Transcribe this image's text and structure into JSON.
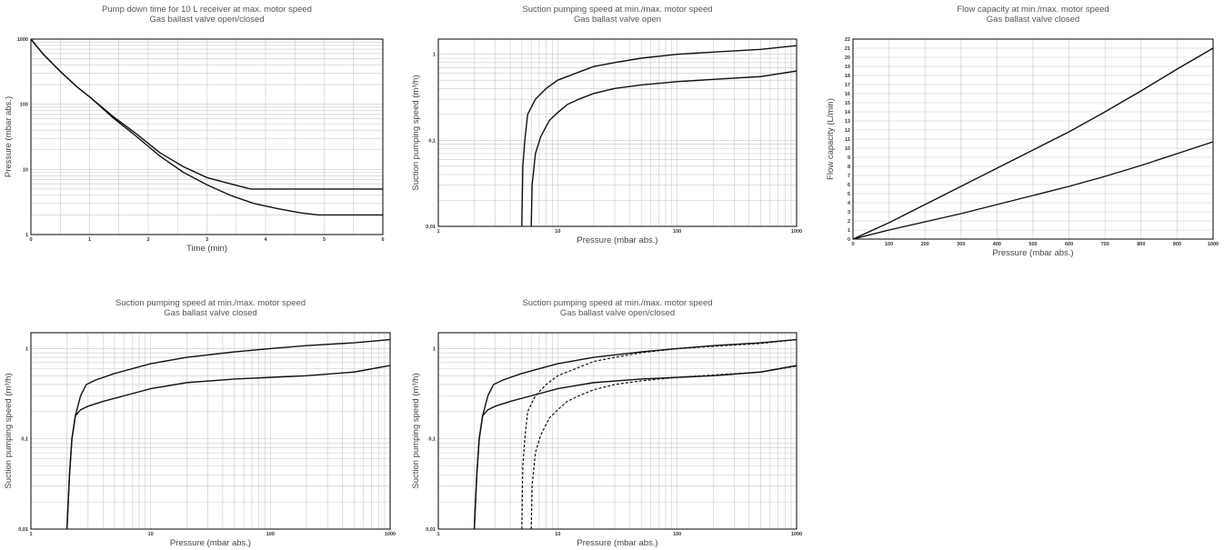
{
  "chart_data": [
    {
      "id": "pumpdown",
      "type": "line",
      "title": [
        "Pump down time for 10 L receiver at max. motor speed",
        "Gas ballast valve open/closed"
      ],
      "xlabel": "Time (min)",
      "ylabel": "Pressure (mbar abs.)",
      "x_scale": "linear",
      "y_scale": "log",
      "xlim": [
        0,
        6
      ],
      "ylim": [
        1,
        1000
      ],
      "x_ticks": [
        "0",
        "1",
        "2",
        "3",
        "4",
        "5",
        "6"
      ],
      "y_ticks": [
        "1",
        "10",
        "100",
        "1000"
      ],
      "series": [
        {
          "dashed": false,
          "points": [
            [
              0,
              1000
            ],
            [
              0.2,
              600
            ],
            [
              0.5,
              320
            ],
            [
              0.8,
              180
            ],
            [
              1.0,
              130
            ],
            [
              1.4,
              65
            ],
            [
              1.8,
              35
            ],
            [
              2.2,
              18
            ],
            [
              2.6,
              11
            ],
            [
              3.0,
              7.5
            ],
            [
              3.4,
              6
            ],
            [
              3.75,
              5
            ],
            [
              4.5,
              5
            ],
            [
              6,
              5
            ]
          ]
        },
        {
          "dashed": false,
          "points": [
            [
              0,
              1000
            ],
            [
              0.2,
              600
            ],
            [
              0.5,
              320
            ],
            [
              0.8,
              180
            ],
            [
              1.0,
              130
            ],
            [
              1.4,
              62
            ],
            [
              1.8,
              32
            ],
            [
              2.2,
              16
            ],
            [
              2.6,
              9
            ],
            [
              3.0,
              5.8
            ],
            [
              3.4,
              4
            ],
            [
              3.8,
              3
            ],
            [
              4.2,
              2.5
            ],
            [
              4.6,
              2.15
            ],
            [
              4.9,
              2
            ],
            [
              6,
              2
            ]
          ]
        }
      ]
    },
    {
      "id": "speed_open",
      "type": "line",
      "title": [
        "Suction pumping speed at min./max. motor speed",
        "Gas ballast valve open"
      ],
      "xlabel": "Pressure (mbar abs.)",
      "ylabel": "Suction pumping speed (m³/h)",
      "x_scale": "log",
      "y_scale": "log",
      "xlim": [
        1,
        1000
      ],
      "ylim": [
        0.01,
        1.5
      ],
      "x_ticks": [
        "1",
        "10",
        "100",
        "1000"
      ],
      "y_ticks": [
        "0,01",
        "0,1",
        "1"
      ],
      "series": [
        {
          "dashed": false,
          "points": [
            [
              5,
              0.01
            ],
            [
              5.1,
              0.05
            ],
            [
              5.3,
              0.1
            ],
            [
              5.6,
              0.2
            ],
            [
              6.5,
              0.3
            ],
            [
              8,
              0.4
            ],
            [
              10,
              0.5
            ],
            [
              15,
              0.62
            ],
            [
              20,
              0.72
            ],
            [
              30,
              0.8
            ],
            [
              50,
              0.9
            ],
            [
              100,
              1.0
            ],
            [
              200,
              1.06
            ],
            [
              500,
              1.14
            ],
            [
              1000,
              1.26
            ]
          ]
        },
        {
          "dashed": false,
          "points": [
            [
              6,
              0.01
            ],
            [
              6.1,
              0.03
            ],
            [
              6.5,
              0.07
            ],
            [
              7.2,
              0.11
            ],
            [
              8.5,
              0.17
            ],
            [
              10,
              0.21
            ],
            [
              12,
              0.26
            ],
            [
              15,
              0.3
            ],
            [
              20,
              0.35
            ],
            [
              30,
              0.4
            ],
            [
              50,
              0.44
            ],
            [
              100,
              0.48
            ],
            [
              200,
              0.51
            ],
            [
              500,
              0.55
            ],
            [
              1000,
              0.64
            ]
          ]
        }
      ]
    },
    {
      "id": "flow",
      "type": "line",
      "title": [
        "Flow capacity at min./max. motor speed",
        "Gas ballast valve closed"
      ],
      "xlabel": "Pressure (mbar abs.)",
      "ylabel": "Flow capacity (L/min)",
      "x_scale": "linear",
      "y_scale": "linear",
      "xlim": [
        0,
        1000
      ],
      "ylim": [
        0,
        22
      ],
      "x_ticks": [
        "0",
        "100",
        "200",
        "300",
        "400",
        "500",
        "600",
        "700",
        "800",
        "900",
        "1000"
      ],
      "y_ticks": [
        "0",
        "1",
        "2",
        "3",
        "4",
        "5",
        "6",
        "7",
        "8",
        "9",
        "10",
        "11",
        "12",
        "13",
        "14",
        "15",
        "16",
        "17",
        "18",
        "19",
        "20",
        "21",
        "22"
      ],
      "series": [
        {
          "dashed": false,
          "points": [
            [
              0,
              0
            ],
            [
              100,
              1.8
            ],
            [
              200,
              3.8
            ],
            [
              300,
              5.8
            ],
            [
              400,
              7.8
            ],
            [
              500,
              9.8
            ],
            [
              600,
              11.8
            ],
            [
              700,
              14
            ],
            [
              800,
              16.3
            ],
            [
              900,
              18.7
            ],
            [
              1000,
              21
            ]
          ]
        },
        {
          "dashed": false,
          "points": [
            [
              0,
              0
            ],
            [
              100,
              1
            ],
            [
              200,
              1.9
            ],
            [
              300,
              2.8
            ],
            [
              400,
              3.8
            ],
            [
              500,
              4.8
            ],
            [
              600,
              5.8
            ],
            [
              700,
              6.9
            ],
            [
              800,
              8.1
            ],
            [
              900,
              9.4
            ],
            [
              1000,
              10.7
            ]
          ]
        }
      ]
    },
    {
      "id": "speed_closed",
      "type": "line",
      "title": [
        "Suction pumping speed at min./max. motor speed",
        "Gas ballast valve closed"
      ],
      "xlabel": "Pressure (mbar abs.)",
      "ylabel": "Suction pumping speed (m³/h)",
      "x_scale": "log",
      "y_scale": "log",
      "xlim": [
        1,
        1000
      ],
      "ylim": [
        0.01,
        1.5
      ],
      "x_ticks": [
        "1",
        "10",
        "100",
        "1000"
      ],
      "y_ticks": [
        "0,01",
        "0,1",
        "1"
      ],
      "series": [
        {
          "dashed": false,
          "points": [
            [
              2,
              0.01
            ],
            [
              2.1,
              0.04
            ],
            [
              2.2,
              0.1
            ],
            [
              2.35,
              0.18
            ],
            [
              2.6,
              0.3
            ],
            [
              2.9,
              0.4
            ],
            [
              3.5,
              0.45
            ],
            [
              5,
              0.53
            ],
            [
              10,
              0.68
            ],
            [
              20,
              0.8
            ],
            [
              50,
              0.92
            ],
            [
              100,
              1.0
            ],
            [
              200,
              1.08
            ],
            [
              500,
              1.16
            ],
            [
              1000,
              1.26
            ]
          ]
        },
        {
          "dashed": false,
          "points": [
            [
              2,
              0.01
            ],
            [
              2.1,
              0.04
            ],
            [
              2.2,
              0.1
            ],
            [
              2.35,
              0.18
            ],
            [
              2.6,
              0.21
            ],
            [
              3,
              0.23
            ],
            [
              4,
              0.26
            ],
            [
              6,
              0.3
            ],
            [
              10,
              0.36
            ],
            [
              20,
              0.42
            ],
            [
              50,
              0.46
            ],
            [
              100,
              0.48
            ],
            [
              200,
              0.5
            ],
            [
              500,
              0.55
            ],
            [
              1000,
              0.65
            ]
          ]
        }
      ]
    },
    {
      "id": "speed_both",
      "type": "line",
      "title": [
        "Suction pumping speed at min./max. motor speed",
        "Gas ballast valve open/closed"
      ],
      "xlabel": "Pressure (mbar abs.)",
      "ylabel": "Suction pumping speed (m³/h)",
      "x_scale": "log",
      "y_scale": "log",
      "xlim": [
        1,
        1000
      ],
      "ylim": [
        0.01,
        1.5
      ],
      "x_ticks": [
        "1",
        "10",
        "100",
        "1000"
      ],
      "y_ticks": [
        "0,01",
        "0,1",
        "1"
      ],
      "series": [
        {
          "dashed": false,
          "points": [
            [
              2,
              0.01
            ],
            [
              2.1,
              0.04
            ],
            [
              2.2,
              0.1
            ],
            [
              2.35,
              0.18
            ],
            [
              2.6,
              0.3
            ],
            [
              2.9,
              0.4
            ],
            [
              3.5,
              0.45
            ],
            [
              5,
              0.53
            ],
            [
              10,
              0.68
            ],
            [
              20,
              0.8
            ],
            [
              50,
              0.92
            ],
            [
              100,
              1.0
            ],
            [
              200,
              1.08
            ],
            [
              500,
              1.16
            ],
            [
              1000,
              1.26
            ]
          ]
        },
        {
          "dashed": false,
          "points": [
            [
              2,
              0.01
            ],
            [
              2.1,
              0.04
            ],
            [
              2.2,
              0.1
            ],
            [
              2.35,
              0.18
            ],
            [
              2.6,
              0.21
            ],
            [
              3,
              0.23
            ],
            [
              4,
              0.26
            ],
            [
              6,
              0.3
            ],
            [
              10,
              0.36
            ],
            [
              20,
              0.42
            ],
            [
              50,
              0.46
            ],
            [
              100,
              0.48
            ],
            [
              200,
              0.5
            ],
            [
              500,
              0.55
            ],
            [
              1000,
              0.65
            ]
          ]
        },
        {
          "dashed": true,
          "points": [
            [
              5,
              0.01
            ],
            [
              5.1,
              0.05
            ],
            [
              5.3,
              0.1
            ],
            [
              5.6,
              0.2
            ],
            [
              6.5,
              0.3
            ],
            [
              8,
              0.4
            ],
            [
              10,
              0.5
            ],
            [
              15,
              0.62
            ],
            [
              20,
              0.72
            ],
            [
              30,
              0.8
            ],
            [
              50,
              0.9
            ],
            [
              100,
              1.0
            ],
            [
              200,
              1.06
            ],
            [
              500,
              1.14
            ],
            [
              1000,
              1.26
            ]
          ]
        },
        {
          "dashed": true,
          "points": [
            [
              6,
              0.01
            ],
            [
              6.1,
              0.03
            ],
            [
              6.5,
              0.07
            ],
            [
              7.2,
              0.11
            ],
            [
              8.5,
              0.17
            ],
            [
              10,
              0.21
            ],
            [
              12,
              0.26
            ],
            [
              15,
              0.3
            ],
            [
              20,
              0.35
            ],
            [
              30,
              0.4
            ],
            [
              50,
              0.44
            ],
            [
              100,
              0.48
            ],
            [
              200,
              0.51
            ],
            [
              500,
              0.55
            ],
            [
              1000,
              0.64
            ]
          ]
        }
      ]
    }
  ]
}
